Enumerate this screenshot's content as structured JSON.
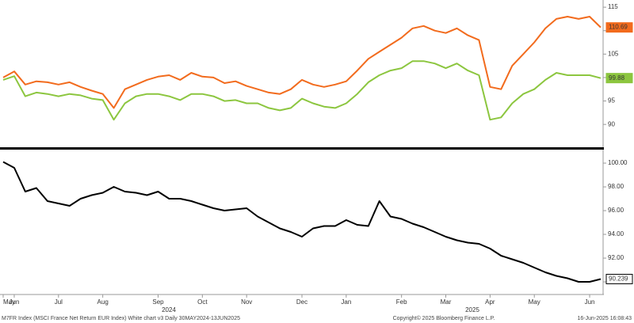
{
  "chart_data": [
    {
      "type": "line",
      "ylim": [
        85.3,
        116.2
      ],
      "yticks": [
        90,
        95,
        100,
        105,
        110,
        115
      ],
      "series": [
        {
          "color": "#f26b1d",
          "label_text_color": "#ffffff",
          "values": [
            100.0,
            101.3,
            98.5,
            99.2,
            99.0,
            98.5,
            99.0,
            98.0,
            97.2,
            96.5,
            93.5,
            97.5,
            98.5,
            99.5,
            100.2,
            100.5,
            99.5,
            101.0,
            100.2,
            100.0,
            98.8,
            99.2,
            98.2,
            97.5,
            96.8,
            96.5,
            97.5,
            99.5,
            98.5,
            98.0,
            98.5,
            99.2,
            101.5,
            104.0,
            105.5,
            107.0,
            108.5,
            110.5,
            111.0,
            110.0,
            109.5,
            110.5,
            109.0,
            108.0,
            98.0,
            97.5,
            102.5,
            105.0,
            107.5,
            110.5,
            112.5,
            113.0,
            112.5,
            113.0,
            110.69
          ]
        },
        {
          "color": "#8cc63f",
          "label_text_color": "#000000",
          "values": [
            99.5,
            100.3,
            96.0,
            96.8,
            96.5,
            96.0,
            96.5,
            96.2,
            95.5,
            95.2,
            91.0,
            94.5,
            96.0,
            96.5,
            96.5,
            96.0,
            95.2,
            96.5,
            96.5,
            96.0,
            95.0,
            95.2,
            94.5,
            94.5,
            93.5,
            93.0,
            93.5,
            95.5,
            94.5,
            93.8,
            93.5,
            94.5,
            96.5,
            99.0,
            100.5,
            101.5,
            102.0,
            103.5,
            103.5,
            103.0,
            102.0,
            103.0,
            101.5,
            100.5,
            91.0,
            91.5,
            94.5,
            96.5,
            97.5,
            99.5,
            101.0,
            100.5,
            100.5,
            100.5,
            99.88
          ]
        }
      ]
    },
    {
      "type": "line",
      "categories": [
        "May",
        "Jun",
        null,
        null,
        null,
        "Jul",
        null,
        null,
        null,
        "Aug",
        null,
        null,
        null,
        null,
        "Sep",
        null,
        null,
        null,
        "Oct",
        null,
        null,
        null,
        "Nov",
        null,
        null,
        null,
        null,
        "Dec",
        null,
        null,
        null,
        "Jan",
        null,
        null,
        null,
        null,
        "Feb",
        null,
        null,
        null,
        "Mar",
        null,
        null,
        null,
        "Apr",
        null,
        null,
        null,
        "May",
        null,
        null,
        null,
        null,
        "Jun",
        null
      ],
      "annotations": [
        "2024",
        "2025"
      ],
      "ylim": [
        89.07,
        101.07
      ],
      "yticks": [
        {
          "value": 90,
          "label": "90.00"
        },
        {
          "value": 92,
          "label": "92.00"
        },
        {
          "value": 94,
          "label": "94.00"
        },
        {
          "value": 96,
          "label": "96.00"
        },
        {
          "value": 98,
          "label": "98.00"
        },
        {
          "value": 100,
          "label": "100.00"
        }
      ],
      "series": [
        {
          "color": "#000000",
          "label_text_color": "#000000",
          "values": [
            100.1,
            99.6,
            97.6,
            97.9,
            96.8,
            96.6,
            96.4,
            97.0,
            97.3,
            97.5,
            98.0,
            97.6,
            97.5,
            97.3,
            97.6,
            97.0,
            97.0,
            96.8,
            96.5,
            96.2,
            96.0,
            96.1,
            96.2,
            95.5,
            95.0,
            94.5,
            94.2,
            93.8,
            94.5,
            94.7,
            94.7,
            95.2,
            94.8,
            94.7,
            96.8,
            95.5,
            95.3,
            94.9,
            94.6,
            94.2,
            93.8,
            93.5,
            93.3,
            93.2,
            92.8,
            92.2,
            91.9,
            91.6,
            91.2,
            90.8,
            90.5,
            90.3,
            90.0,
            90.0,
            90.239
          ]
        }
      ]
    }
  ],
  "footer": {
    "left": "M7FR Index (MSCI France Net Return EUR Index) White chart v3  Daily 30MAY2024-13JUN2025",
    "center": "Copyright© 2025 Bloomberg Finance L.P.",
    "right": "16-Jun-2025 16:08:43"
  }
}
